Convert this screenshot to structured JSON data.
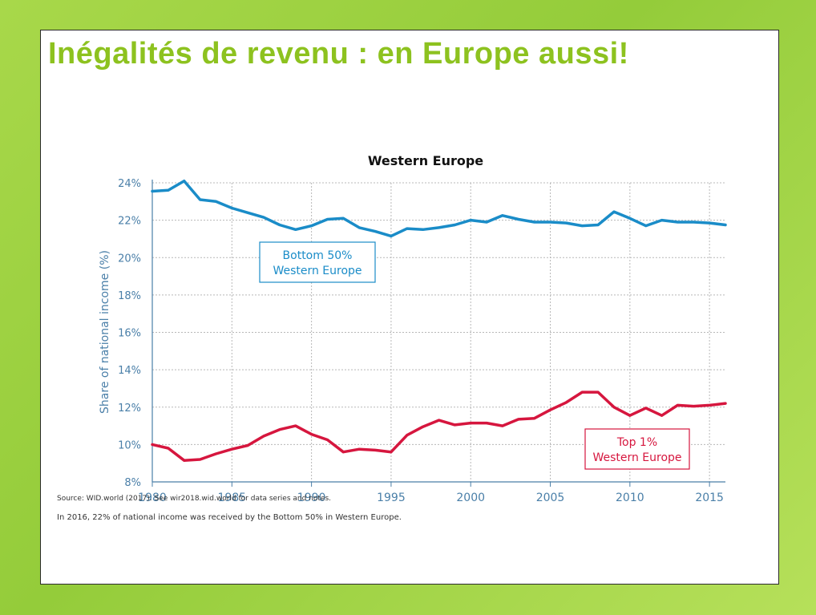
{
  "slide": {
    "title": "Inégalités de revenu : en Europe aussi!"
  },
  "colors": {
    "accent": "#8dc21f",
    "series_bottom": "#1a8cc8",
    "series_top": "#d6163e",
    "axis_text": "#4a7fa8",
    "grid": "#b8b8b8"
  },
  "chart_data": {
    "type": "line",
    "title": "Western Europe",
    "xlabel": "",
    "ylabel": "Share of national income (%)",
    "xlim": [
      1980,
      2016
    ],
    "ylim": [
      8,
      24
    ],
    "x_ticks": [
      1980,
      1985,
      1990,
      1995,
      2000,
      2005,
      2010,
      2015
    ],
    "y_ticks": [
      8,
      10,
      12,
      14,
      16,
      18,
      20,
      22,
      24
    ],
    "y_tick_labels": [
      "8%",
      "10%",
      "12%",
      "14%",
      "16%",
      "18%",
      "20%",
      "22%",
      "24%"
    ],
    "grid": true,
    "x": [
      1980,
      1981,
      1982,
      1983,
      1984,
      1985,
      1986,
      1987,
      1988,
      1989,
      1990,
      1991,
      1992,
      1993,
      1994,
      1995,
      1996,
      1997,
      1998,
      1999,
      2000,
      2001,
      2002,
      2003,
      2004,
      2005,
      2006,
      2007,
      2008,
      2009,
      2010,
      2011,
      2012,
      2013,
      2014,
      2015,
      2016
    ],
    "series": [
      {
        "name": "Bottom 50% Western Europe",
        "label_lines": [
          "Bottom 50%",
          "Western Europe"
        ],
        "color": "#1a8cc8",
        "values": [
          23.55,
          23.6,
          24.1,
          23.1,
          23.0,
          22.65,
          22.4,
          22.15,
          21.75,
          21.5,
          21.7,
          22.05,
          22.1,
          21.6,
          21.4,
          21.15,
          21.55,
          21.5,
          21.6,
          21.75,
          22.0,
          21.9,
          22.25,
          22.05,
          21.9,
          21.9,
          21.85,
          21.7,
          21.75,
          22.45,
          22.1,
          21.7,
          22.0,
          21.9,
          21.9,
          21.85,
          21.75
        ]
      },
      {
        "name": "Top 1% Western Europe",
        "label_lines": [
          "Top 1%",
          "Western Europe"
        ],
        "color": "#d6163e",
        "values": [
          10.0,
          9.8,
          9.15,
          9.2,
          9.5,
          9.75,
          9.95,
          10.45,
          10.8,
          11.0,
          10.55,
          10.25,
          9.6,
          9.75,
          9.7,
          9.6,
          10.5,
          10.95,
          11.3,
          11.05,
          11.15,
          11.15,
          11.0,
          11.35,
          11.4,
          11.85,
          12.25,
          12.8,
          12.8,
          12.0,
          11.55,
          11.95,
          11.55,
          12.1,
          12.05,
          12.1,
          12.2
        ]
      }
    ]
  },
  "footnotes": {
    "source": "Source:  WID.world (2017). See wir2018.wid.world for data series and notes.",
    "note": "In 2016, 22% of national income was received by the Bottom 50% in Western Europe."
  }
}
